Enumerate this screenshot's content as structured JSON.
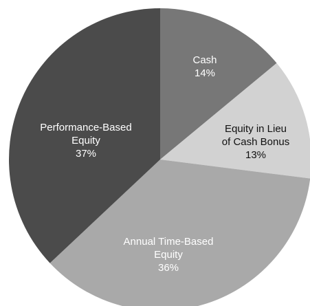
{
  "chart_data": {
    "type": "pie",
    "categories": [
      [
        "Cash"
      ],
      [
        "Equity in Lieu",
        "of Cash Bonus"
      ],
      [
        "Annual Time-Based",
        "Equity"
      ],
      [
        "Performance-Based",
        "Equity"
      ]
    ],
    "values": [
      14,
      13,
      36,
      37
    ],
    "value_labels": [
      "14%",
      "13%",
      "36%",
      "37%"
    ],
    "colors": [
      "#777777",
      "#d2d2d2",
      "#a9a9a9",
      "#4b4b4b"
    ]
  }
}
